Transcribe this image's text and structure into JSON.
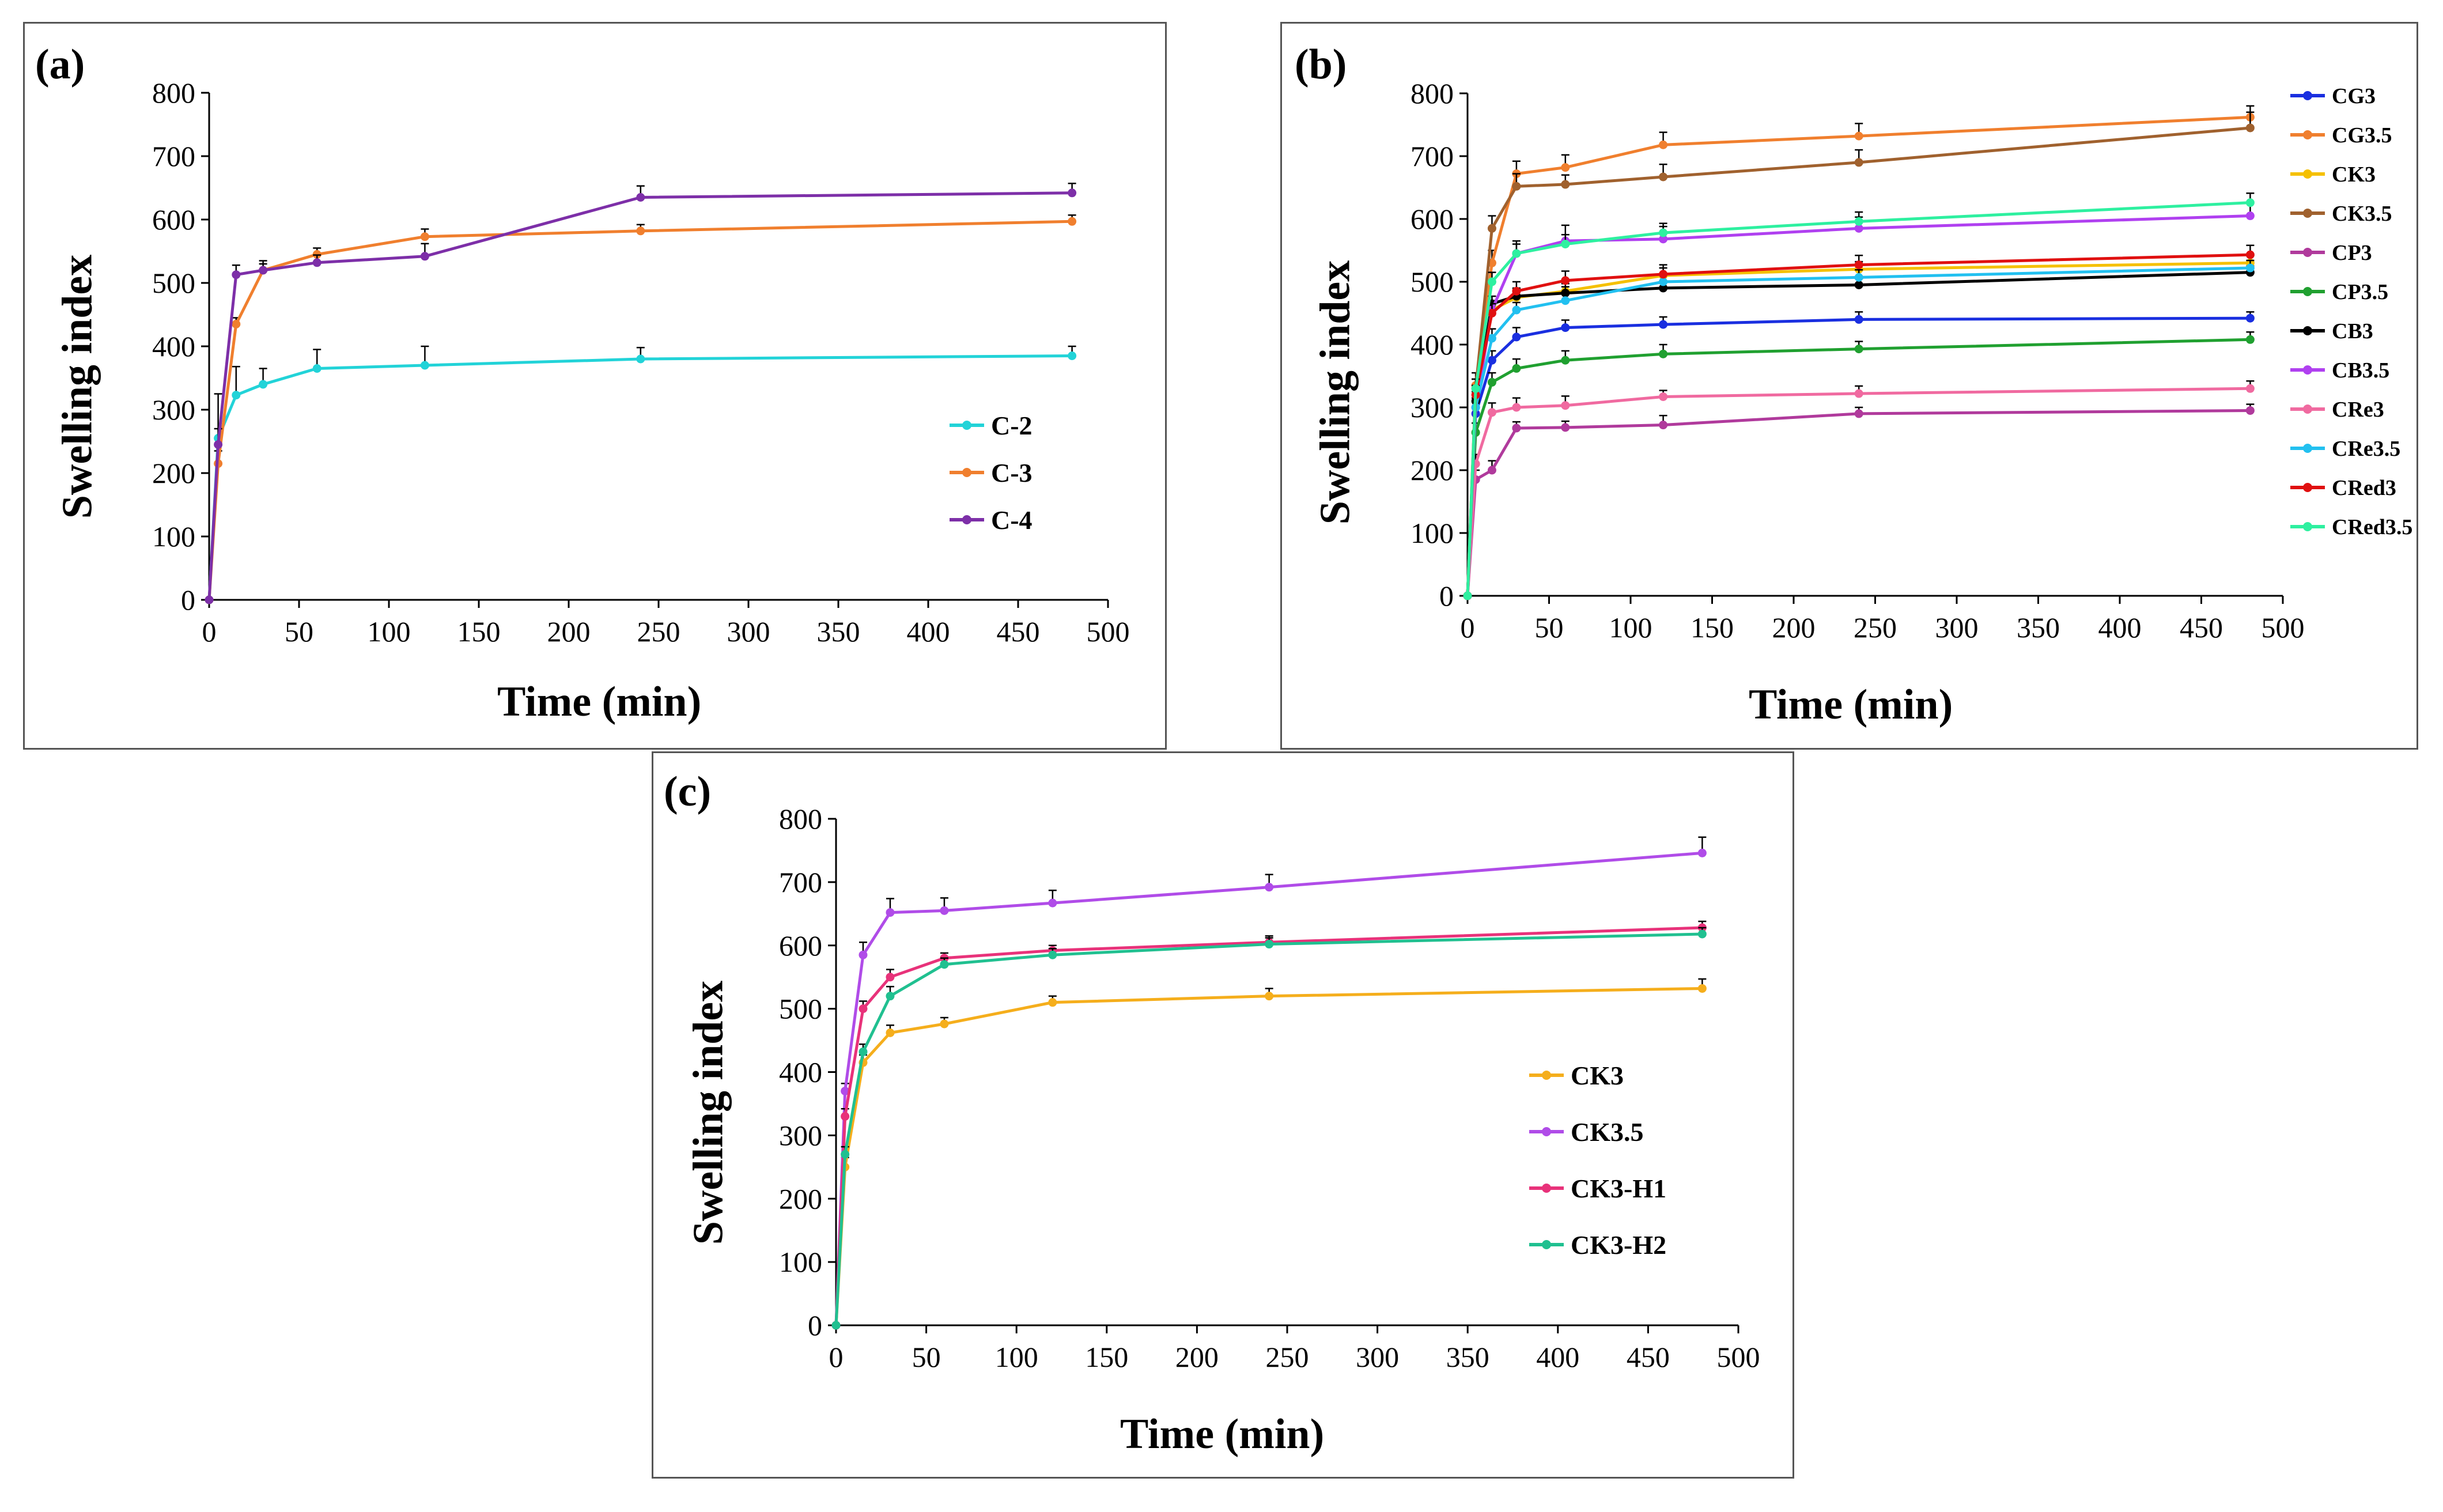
{
  "panels": [
    {
      "label": "(a)",
      "xlabel": "Time (min)",
      "ylabel": "Swelling index"
    },
    {
      "label": "(b)",
      "xlabel": "Time (min)",
      "ylabel": "Swelling index"
    },
    {
      "label": "(c)",
      "xlabel": "Time (min)",
      "ylabel": "Swelling index"
    }
  ],
  "chart_data": [
    {
      "type": "line",
      "title": "(a)",
      "xlabel": "Time (min)",
      "ylabel": "Swelling index",
      "xlim": [
        0,
        500
      ],
      "ylim": [
        0,
        800
      ],
      "xticks": [
        0,
        50,
        100,
        150,
        200,
        250,
        300,
        350,
        400,
        450,
        500
      ],
      "yticks": [
        0,
        100,
        200,
        300,
        400,
        500,
        600,
        700,
        800
      ],
      "legend_position": "right",
      "grid": false,
      "series": [
        {
          "name": "C-2",
          "color": "#22d3d8",
          "x": [
            0,
            5,
            15,
            30,
            60,
            120,
            240,
            480
          ],
          "y": [
            0,
            255,
            323,
            340,
            365,
            370,
            380,
            385
          ],
          "err": [
            0,
            70,
            45,
            25,
            30,
            30,
            18,
            15
          ]
        },
        {
          "name": "C-3",
          "color": "#f07f2e",
          "x": [
            0,
            5,
            15,
            30,
            60,
            120,
            240,
            480
          ],
          "y": [
            0,
            215,
            435,
            520,
            545,
            573,
            582,
            597
          ],
          "err": [
            0,
            20,
            10,
            10,
            10,
            12,
            10,
            10
          ]
        },
        {
          "name": "C-4",
          "color": "#7d2fa8",
          "x": [
            0,
            5,
            15,
            30,
            60,
            120,
            240,
            480
          ],
          "y": [
            0,
            245,
            513,
            520,
            532,
            542,
            635,
            642
          ],
          "err": [
            0,
            25,
            15,
            15,
            12,
            20,
            18,
            15
          ]
        }
      ]
    },
    {
      "type": "line",
      "title": "(b)",
      "xlabel": "Time (min)",
      "ylabel": "Swelling index",
      "xlim": [
        0,
        500
      ],
      "ylim": [
        0,
        800
      ],
      "xticks": [
        0,
        50,
        100,
        150,
        200,
        250,
        300,
        350,
        400,
        450,
        500
      ],
      "yticks": [
        0,
        100,
        200,
        300,
        400,
        500,
        600,
        700,
        800
      ],
      "legend_position": "right",
      "grid": false,
      "series": [
        {
          "name": "CG3",
          "color": "#1a2fe0",
          "x": [
            0,
            5,
            15,
            30,
            60,
            120,
            240,
            480
          ],
          "y": [
            0,
            290,
            375,
            412,
            427,
            432,
            440,
            442
          ],
          "err": [
            0,
            20,
            15,
            15,
            12,
            12,
            12,
            10
          ]
        },
        {
          "name": "CG3.5",
          "color": "#f07f2e",
          "x": [
            0,
            5,
            15,
            30,
            60,
            120,
            240,
            480
          ],
          "y": [
            0,
            335,
            530,
            672,
            682,
            718,
            732,
            762
          ],
          "err": [
            0,
            20,
            20,
            20,
            20,
            20,
            20,
            18
          ]
        },
        {
          "name": "CK3",
          "color": "#f5c000",
          "x": [
            0,
            5,
            15,
            30,
            60,
            120,
            240,
            480
          ],
          "y": [
            0,
            300,
            455,
            475,
            485,
            510,
            520,
            530
          ],
          "err": [
            0,
            20,
            15,
            15,
            12,
            12,
            12,
            12
          ]
        },
        {
          "name": "CK3.5",
          "color": "#a0612e",
          "x": [
            0,
            5,
            15,
            30,
            60,
            120,
            240,
            480
          ],
          "y": [
            0,
            330,
            585,
            652,
            655,
            667,
            690,
            745
          ],
          "err": [
            0,
            15,
            20,
            20,
            15,
            20,
            20,
            25
          ]
        },
        {
          "name": "CP3",
          "color": "#b03a9c",
          "x": [
            0,
            5,
            15,
            30,
            60,
            120,
            240,
            480
          ],
          "y": [
            0,
            185,
            200,
            267,
            268,
            272,
            290,
            295
          ],
          "err": [
            0,
            15,
            15,
            10,
            10,
            15,
            10,
            10
          ]
        },
        {
          "name": "CP3.5",
          "color": "#20a030",
          "x": [
            0,
            5,
            15,
            30,
            60,
            120,
            240,
            480
          ],
          "y": [
            0,
            260,
            340,
            362,
            375,
            385,
            393,
            408
          ],
          "err": [
            0,
            15,
            15,
            15,
            15,
            15,
            12,
            12
          ]
        },
        {
          "name": "CB3",
          "color": "#000000",
          "x": [
            0,
            5,
            15,
            30,
            60,
            120,
            240,
            480
          ],
          "y": [
            0,
            310,
            465,
            477,
            482,
            490,
            495,
            515
          ],
          "err": [
            0,
            15,
            12,
            12,
            10,
            10,
            10,
            10
          ]
        },
        {
          "name": "CB3.5",
          "color": "#b040f0",
          "x": [
            0,
            5,
            15,
            30,
            60,
            120,
            240,
            480
          ],
          "y": [
            0,
            300,
            455,
            545,
            565,
            568,
            585,
            605
          ],
          "err": [
            0,
            15,
            15,
            20,
            25,
            20,
            18,
            20
          ]
        },
        {
          "name": "CRe3",
          "color": "#f06aa0",
          "x": [
            0,
            5,
            15,
            30,
            60,
            120,
            240,
            480
          ],
          "y": [
            0,
            210,
            292,
            300,
            303,
            317,
            322,
            330
          ],
          "err": [
            0,
            15,
            15,
            15,
            15,
            10,
            12,
            12
          ]
        },
        {
          "name": "CRe3.5",
          "color": "#22c0f0",
          "x": [
            0,
            5,
            15,
            30,
            60,
            120,
            240,
            480
          ],
          "y": [
            0,
            300,
            410,
            455,
            470,
            500,
            507,
            522
          ],
          "err": [
            0,
            15,
            15,
            12,
            12,
            12,
            12,
            12
          ]
        },
        {
          "name": "CRed3",
          "color": "#e01010",
          "x": [
            0,
            5,
            15,
            30,
            60,
            120,
            240,
            480
          ],
          "y": [
            0,
            320,
            450,
            485,
            502,
            512,
            527,
            543
          ],
          "err": [
            0,
            15,
            15,
            15,
            15,
            15,
            15,
            15
          ]
        },
        {
          "name": "CRed3.5",
          "color": "#2ef0a0",
          "x": [
            0,
            5,
            15,
            30,
            60,
            120,
            240,
            480
          ],
          "y": [
            0,
            330,
            500,
            545,
            560,
            578,
            596,
            626
          ],
          "err": [
            0,
            15,
            15,
            15,
            15,
            15,
            15,
            15
          ]
        }
      ]
    },
    {
      "type": "line",
      "title": "(c)",
      "xlabel": "Time (min)",
      "ylabel": "Swelling index",
      "xlim": [
        0,
        500
      ],
      "ylim": [
        0,
        800
      ],
      "xticks": [
        0,
        50,
        100,
        150,
        200,
        250,
        300,
        350,
        400,
        450,
        500
      ],
      "yticks": [
        0,
        100,
        200,
        300,
        400,
        500,
        600,
        700,
        800
      ],
      "legend_position": "right",
      "grid": false,
      "series": [
        {
          "name": "CK3",
          "color": "#f5ae1c",
          "x": [
            0,
            5,
            15,
            30,
            60,
            120,
            240,
            480
          ],
          "y": [
            0,
            250,
            415,
            462,
            476,
            510,
            520,
            532
          ],
          "err": [
            0,
            15,
            12,
            12,
            10,
            10,
            12,
            15
          ]
        },
        {
          "name": "CK3.5",
          "color": "#b04ce8",
          "x": [
            0,
            5,
            15,
            30,
            60,
            120,
            240,
            480
          ],
          "y": [
            0,
            370,
            585,
            652,
            655,
            667,
            692,
            746
          ],
          "err": [
            0,
            12,
            20,
            22,
            20,
            20,
            20,
            25
          ]
        },
        {
          "name": "CK3-H1",
          "color": "#e8327a",
          "x": [
            0,
            5,
            15,
            30,
            60,
            120,
            240,
            480
          ],
          "y": [
            0,
            330,
            500,
            550,
            580,
            592,
            605,
            628
          ],
          "err": [
            0,
            12,
            12,
            12,
            8,
            8,
            10,
            10
          ]
        },
        {
          "name": "CK3-H2",
          "color": "#20c090",
          "x": [
            0,
            5,
            15,
            30,
            60,
            120,
            240,
            480
          ],
          "y": [
            0,
            270,
            432,
            520,
            570,
            585,
            602,
            618
          ],
          "err": [
            0,
            12,
            12,
            15,
            10,
            10,
            10,
            10
          ]
        }
      ]
    }
  ]
}
